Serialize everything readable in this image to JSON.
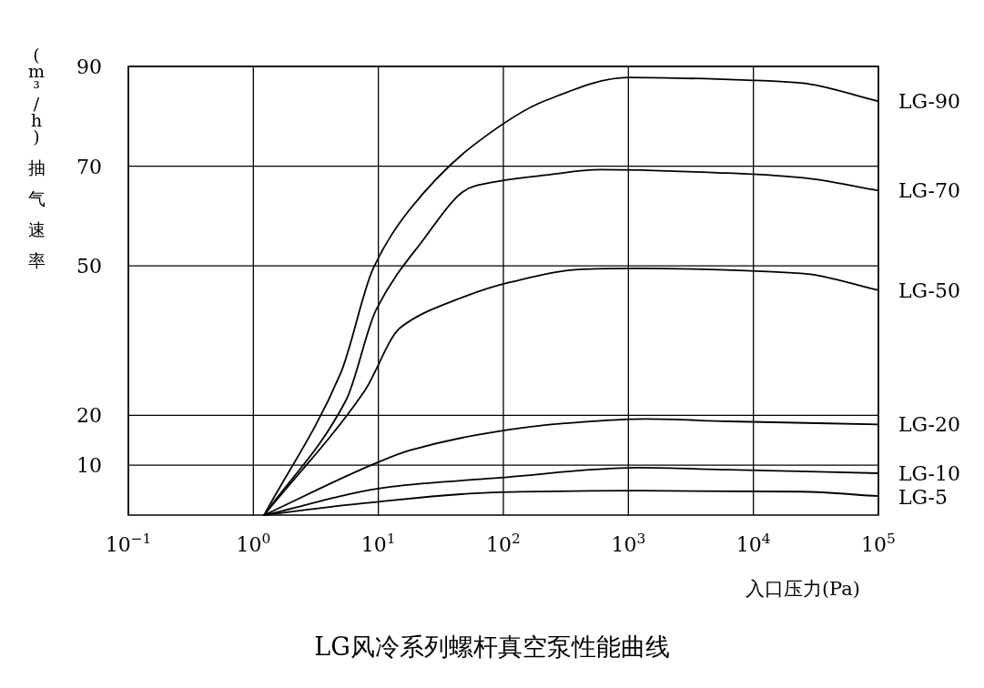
{
  "chart_data": {
    "type": "line",
    "title": "LG风冷系列螺杆真空泵性能曲线",
    "xlabel": "入口压力(Pa)",
    "ylabel": "(m³/h) 抽气速率",
    "log": "x",
    "grid": true,
    "legend": false,
    "line_style": "solid",
    "marker": "none",
    "xlim": [
      0.1,
      100000
    ],
    "xticks": [
      {
        "value": 0.1,
        "label": "10$^{−1}$"
      },
      {
        "value": 1,
        "label": "10$^{0}$"
      },
      {
        "value": 10,
        "label": "10$^{1}$"
      },
      {
        "value": 100,
        "label": "10$^{2}$"
      },
      {
        "value": 1000,
        "label": "10$^{3}$"
      },
      {
        "value": 10000,
        "label": "10$^{4}$"
      },
      {
        "value": 100000,
        "label": "10$^{5}$"
      }
    ],
    "ylim": [
      0,
      90
    ],
    "yticks": [
      10,
      20,
      50,
      70,
      90
    ],
    "series": [
      {
        "name": "LG-90",
        "color": "#000000",
        "x": [
          1.22,
          5,
          9.1,
          17.8,
          57,
          219,
          1000,
          10500,
          24000,
          100000
        ],
        "values": [
          0,
          28.5,
          49.5,
          61.3,
          74.1,
          83.2,
          87.8,
          87.2,
          86.7,
          83.0
        ]
      },
      {
        "name": "LG-70",
        "color": "#000000",
        "x": [
          1.22,
          5.5,
          9.6,
          21,
          57,
          219,
          603,
          6300,
          24000,
          100000
        ],
        "values": [
          0,
          23,
          41.2,
          54,
          65.9,
          68.2,
          69.3,
          68.6,
          67.7,
          65.1
        ]
      },
      {
        "name": "LG-50",
        "color": "#000000",
        "x": [
          1.22,
          7.7,
          15,
          41,
          113,
          427,
          1175,
          24000,
          100000
        ],
        "values": [
          0,
          24.8,
          37.6,
          43.1,
          46.7,
          49.3,
          49.5,
          48.5,
          45.1
        ]
      },
      {
        "name": "LG-20",
        "color": "#000000",
        "x": [
          1.22,
          9.1,
          17.8,
          81,
          309,
          1380,
          6300,
          100000
        ],
        "values": [
          0,
          10.2,
          13,
          16.6,
          18.4,
          19.3,
          18.8,
          18.2
        ]
      },
      {
        "name": "LG-10",
        "color": "#000000",
        "x": [
          1.22,
          12.6,
          96,
          1175,
          6300,
          100000
        ],
        "values": [
          0,
          5.7,
          7.5,
          9.5,
          9.1,
          8.4
        ]
      },
      {
        "name": "LG-5",
        "color": "#000000",
        "x": [
          1.22,
          7.7,
          96,
          1175,
          24000,
          100000
        ],
        "values": [
          0,
          2.4,
          4.6,
          4.9,
          4.7,
          3.8
        ]
      }
    ]
  }
}
